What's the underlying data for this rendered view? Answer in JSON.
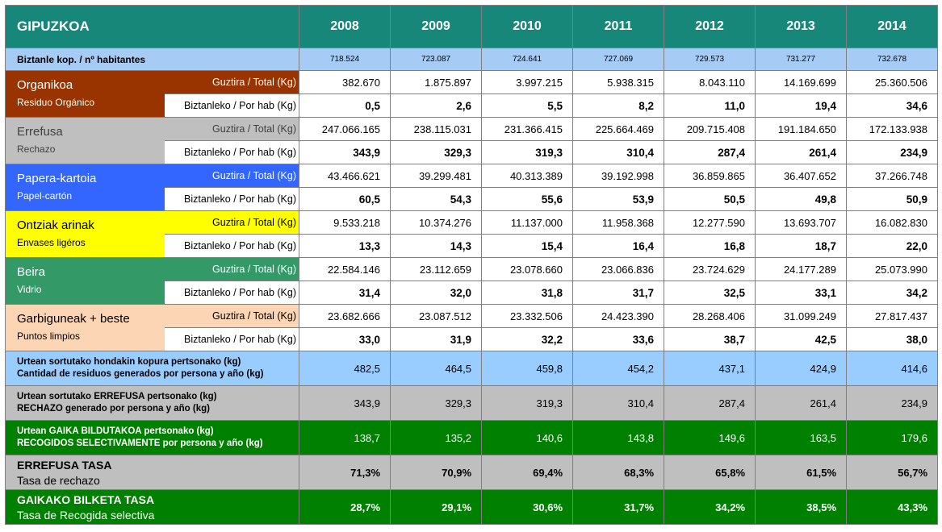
{
  "header": {
    "title": "GIPUZKOA",
    "years": [
      "2008",
      "2009",
      "2010",
      "2011",
      "2012",
      "2013",
      "2014"
    ]
  },
  "population": {
    "label": "Biztanle kop. / nº habitantes",
    "values": [
      "718.524",
      "723.087",
      "724.641",
      "727.069",
      "729.573",
      "731.277",
      "732.678"
    ]
  },
  "units": {
    "total": "Guztira / Total (Kg)",
    "per_hab": "Biztanleko / Por hab (Kg)"
  },
  "categories": [
    {
      "name_eu": "Organikoa",
      "name_es": "Residuo Orgánico",
      "bg": "#993300",
      "fg": "#ffffff",
      "total": [
        "382.670",
        "1.875.897",
        "3.997.215",
        "5.938.315",
        "8.043.110",
        "14.169.699",
        "25.360.506"
      ],
      "per_hab": [
        "0,5",
        "2,6",
        "5,5",
        "8,2",
        "11,0",
        "19,4",
        "34,6"
      ]
    },
    {
      "name_eu": "Errefusa",
      "name_es": "Rechazo",
      "bg": "#bfbfbf",
      "fg": "#404040",
      "total": [
        "247.066.165",
        "238.115.031",
        "231.366.415",
        "225.664.469",
        "209.715.408",
        "191.184.650",
        "172.133.938"
      ],
      "per_hab": [
        "343,9",
        "329,3",
        "319,3",
        "310,4",
        "287,4",
        "261,4",
        "234,9"
      ]
    },
    {
      "name_eu": "Papera-kartoia",
      "name_es": "Papel-cartón",
      "bg": "#3366ff",
      "fg": "#ffffff",
      "total": [
        "43.466.621",
        "39.299.481",
        "40.313.389",
        "39.192.998",
        "36.859.865",
        "36.407.652",
        "37.266.748"
      ],
      "per_hab": [
        "60,5",
        "54,3",
        "55,6",
        "53,9",
        "50,5",
        "49,8",
        "50,9"
      ]
    },
    {
      "name_eu": "Ontziak arinak",
      "name_es": "Envases ligéros",
      "bg": "#ffff00",
      "fg": "#000000",
      "total": [
        "9.533.218",
        "10.374.276",
        "11.137.000",
        "11.958.368",
        "12.277.590",
        "13.693.707",
        "16.082.830"
      ],
      "per_hab": [
        "13,3",
        "14,3",
        "15,4",
        "16,4",
        "16,8",
        "18,7",
        "22,0"
      ]
    },
    {
      "name_eu": "Beira",
      "name_es": "Vidrio",
      "bg": "#339966",
      "fg": "#ffffff",
      "total": [
        "22.584.146",
        "23.112.659",
        "23.078.660",
        "23.066.836",
        "23.724.629",
        "24.177.289",
        "25.073.990"
      ],
      "per_hab": [
        "31,4",
        "32,0",
        "31,8",
        "31,7",
        "32,5",
        "33,1",
        "34,2"
      ]
    },
    {
      "name_eu": "Garbiguneak + beste",
      "name_es": "Puntos limpios",
      "bg": "#fcd5b4",
      "fg": "#000000",
      "total": [
        "23.682.666",
        "23.087.512",
        "23.332.506",
        "24.423.390",
        "28.268.406",
        "31.099.249",
        "27.817.437"
      ],
      "per_hab": [
        "33,0",
        "31,9",
        "32,2",
        "33,6",
        "38,7",
        "42,5",
        "38,0"
      ]
    }
  ],
  "summaries": [
    {
      "label_eu": "Urtean sortutako hondakin kopura pertsonako (kg)",
      "label_es": "Cantidad de residuos generados por persona y año (kg)",
      "bg": "#99ccff",
      "fg": "#000000",
      "values": [
        "482,5",
        "464,5",
        "459,8",
        "454,2",
        "437,1",
        "424,9",
        "414,6"
      ]
    },
    {
      "label_eu": "Urtean sortutako ERREFUSA pertsonako (kg)",
      "label_es": "RECHAZO generado por persona y año (kg)",
      "bg": "#bfbfbf",
      "fg": "#000000",
      "values": [
        "343,9",
        "329,3",
        "319,3",
        "310,4",
        "287,4",
        "261,4",
        "234,9"
      ]
    },
    {
      "label_eu": "Urtean GAIKA BILDUTAKOA pertsonako (kg)",
      "label_es": "RECOGIDOS SELECTIVAMENTE por persona y año (kg)",
      "bg": "#008000",
      "fg": "#ffffff",
      "values": [
        "138,7",
        "135,2",
        "140,6",
        "143,8",
        "149,6",
        "163,5",
        "179,6"
      ]
    }
  ],
  "rates": [
    {
      "label_eu": "ERREFUSA TASA",
      "label_es": "Tasa de rechazo",
      "bg": "#bfbfbf",
      "fg": "#000000",
      "values": [
        "71,3%",
        "70,9%",
        "69,4%",
        "68,3%",
        "65,8%",
        "61,5%",
        "56,7%"
      ]
    },
    {
      "label_eu": "GAIKAKO BILKETA TASA",
      "label_es": "Tasa de Recogida selectiva",
      "bg": "#008000",
      "fg": "#ffffff",
      "values": [
        "28,7%",
        "29,1%",
        "30,6%",
        "31,7%",
        "34,2%",
        "38,5%",
        "43,3%"
      ]
    }
  ]
}
